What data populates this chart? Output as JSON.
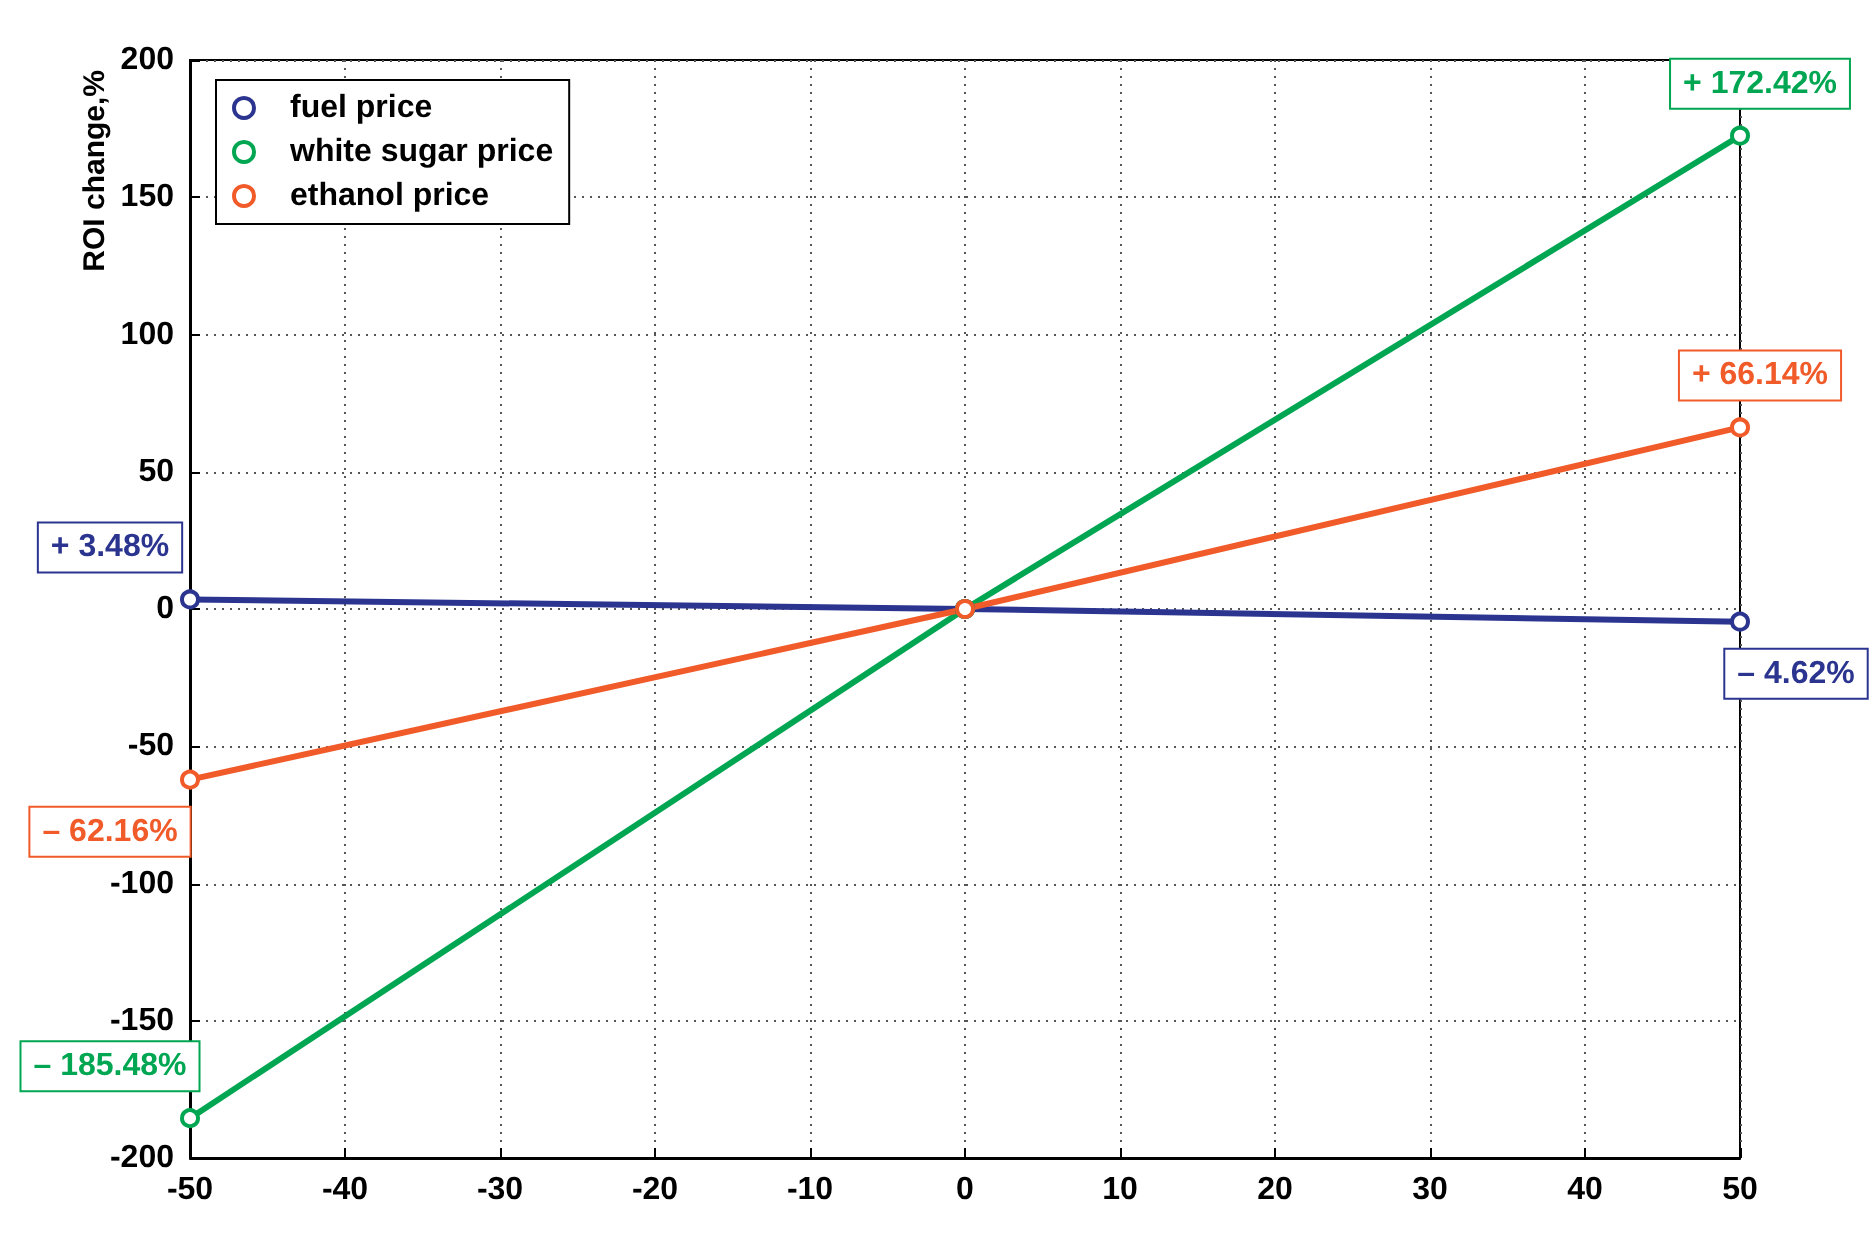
{
  "chart_data": {
    "type": "line",
    "ylabel": "ROI change,%",
    "x": [
      -50,
      0,
      50
    ],
    "series": [
      {
        "name": "fuel price",
        "color": "#2b3590",
        "values": [
          3.48,
          0,
          -4.62
        ],
        "value_labels": [
          "+ 3.48%",
          null,
          "– 4.62%"
        ]
      },
      {
        "name": "white sugar price",
        "color": "#00a651",
        "values": [
          -185.48,
          0,
          172.42
        ],
        "value_labels": [
          "– 185.48%",
          null,
          "+ 172.42%"
        ]
      },
      {
        "name": "ethanol price",
        "color": "#f15a29",
        "values": [
          -62.16,
          0,
          66.14
        ],
        "value_labels": [
          "– 62.16%",
          null,
          "+ 66.14%"
        ]
      }
    ],
    "xlim": [
      -50,
      50
    ],
    "xticks": [
      -50,
      -40,
      -30,
      -20,
      -10,
      0,
      10,
      20,
      30,
      40,
      50
    ],
    "ylim": [
      -200,
      200
    ],
    "yticks": [
      -200,
      -150,
      -100,
      -50,
      0,
      50,
      100,
      150,
      200
    ],
    "grid": true,
    "legend": "top left",
    "marker": "circle",
    "line_style": "solid"
  }
}
